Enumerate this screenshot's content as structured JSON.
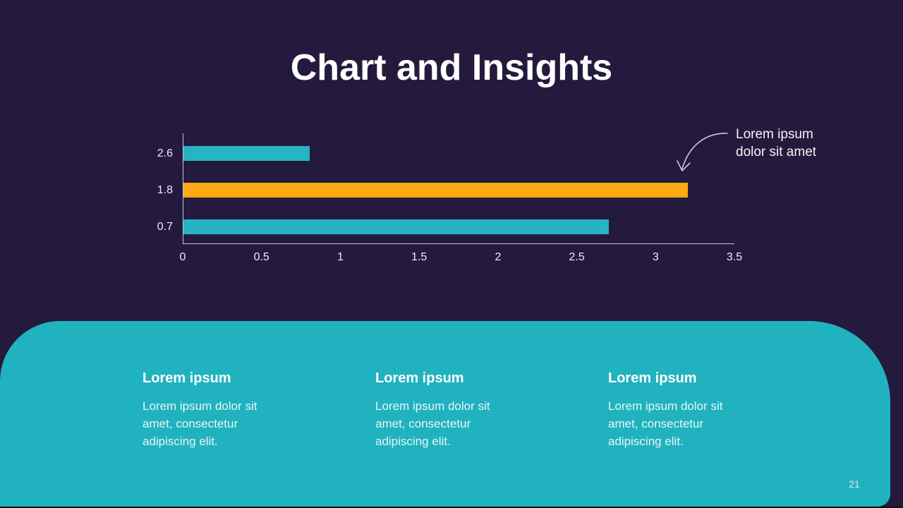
{
  "slide": {
    "title": "Chart and Insights",
    "page_number": "21"
  },
  "chart_data": {
    "type": "bar",
    "orientation": "horizontal",
    "categories": [
      "2.6",
      "1.8",
      "0.7"
    ],
    "values": [
      0.8,
      3.2,
      2.7
    ],
    "bar_colors": [
      "#26B4C3",
      "#FCA913",
      "#26B4C3"
    ],
    "x_ticks": [
      "0",
      "0.5",
      "1",
      "1.5",
      "2",
      "2.5",
      "3",
      "3.5"
    ],
    "xlim": [
      0,
      3.5
    ],
    "grid": false,
    "legend": null,
    "annotation": {
      "text": "Lorem ipsum dolor sit amet",
      "lines": [
        "Lorem ipsum",
        "dolor sit amet"
      ],
      "points_to": "end of orange bar (1.8)"
    }
  },
  "insights": [
    {
      "heading": "Lorem ipsum",
      "body": "Lorem ipsum dolor sit amet, consectetur adipiscing elit."
    },
    {
      "heading": "Lorem ipsum",
      "body": "Lorem ipsum dolor sit amet, consectetur adipiscing elit."
    },
    {
      "heading": "Lorem ipsum",
      "body": "Lorem ipsum dolor sit amet, consectetur adipiscing elit."
    }
  ],
  "colors": {
    "background": "#241A3E",
    "teal_bar": "#26B4C3",
    "orange_bar": "#FCA913",
    "panel": "#21B2C0",
    "axis": "#C9C9D9",
    "text": "#FFFFFF"
  }
}
